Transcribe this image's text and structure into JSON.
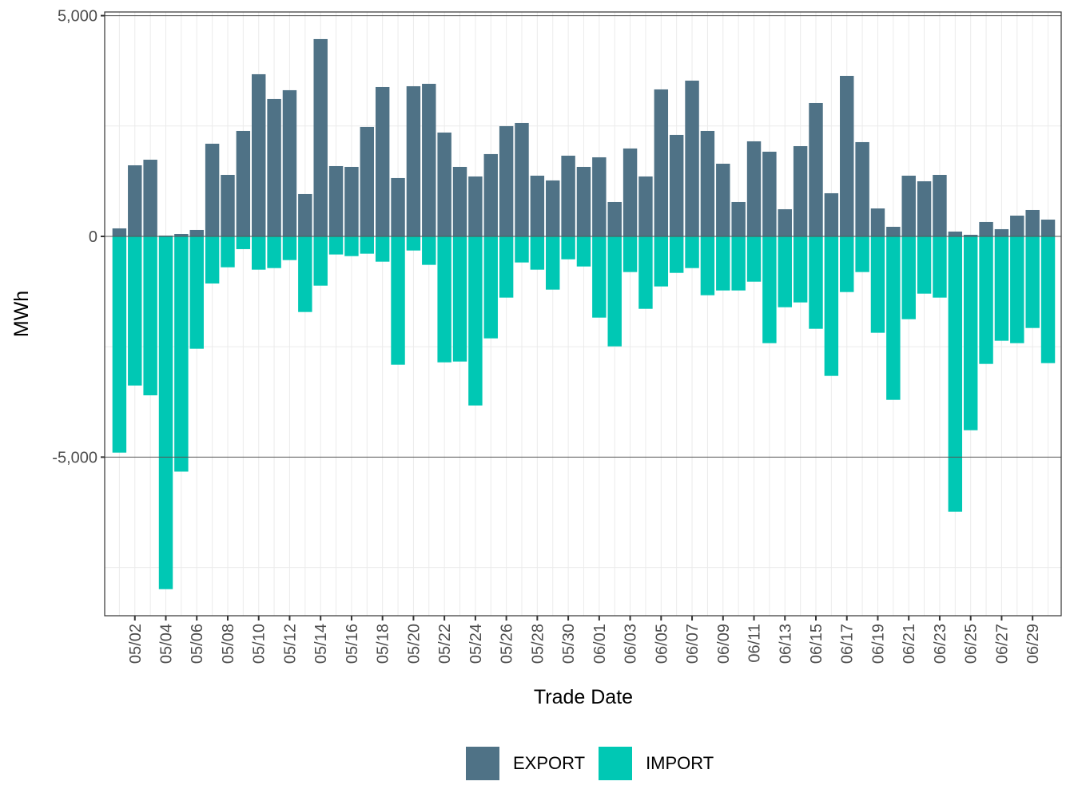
{
  "chart_data": {
    "type": "bar",
    "stacked": true,
    "title": "",
    "xlabel": "Trade Date",
    "ylabel": "MWh",
    "ylim": [
      -8593,
      5083
    ],
    "yticks": [
      5000,
      0,
      -5000
    ],
    "ytick_labels": [
      "5,000",
      "0",
      "-5,000"
    ],
    "grid": true,
    "legend_position": "bottom",
    "categories": [
      "05/01",
      "05/02",
      "05/03",
      "05/04",
      "05/05",
      "05/06",
      "05/07",
      "05/08",
      "05/09",
      "05/10",
      "05/11",
      "05/12",
      "05/13",
      "05/14",
      "05/15",
      "05/16",
      "05/17",
      "05/18",
      "05/19",
      "05/20",
      "05/21",
      "05/22",
      "05/23",
      "05/24",
      "05/25",
      "05/26",
      "05/27",
      "05/28",
      "05/29",
      "05/30",
      "05/31",
      "06/01",
      "06/02",
      "06/03",
      "06/04",
      "06/05",
      "06/06",
      "06/07",
      "06/08",
      "06/09",
      "06/10",
      "06/11",
      "06/12",
      "06/13",
      "06/14",
      "06/15",
      "06/16",
      "06/17",
      "06/18",
      "06/19",
      "06/20",
      "06/21",
      "06/22",
      "06/23",
      "06/24",
      "06/25",
      "06/26",
      "06/27",
      "06/28",
      "06/29",
      "06/30"
    ],
    "xtick_labels": [
      "05/02",
      "05/04",
      "05/06",
      "05/08",
      "05/10",
      "05/12",
      "05/14",
      "05/16",
      "05/18",
      "05/20",
      "05/22",
      "05/24",
      "05/26",
      "05/28",
      "05/30",
      "06/01",
      "06/03",
      "06/05",
      "06/07",
      "06/09",
      "06/11",
      "06/13",
      "06/15",
      "06/17",
      "06/19",
      "06/21",
      "06/23",
      "06/25",
      "06/27",
      "06/29"
    ],
    "series": [
      {
        "name": "EXPORT",
        "color": "#4f7286",
        "values": [
          181,
          1610,
          1737,
          18,
          54,
          145,
          2099,
          1393,
          2388,
          3673,
          3112,
          3311,
          959,
          4469,
          1592,
          1574,
          2479,
          3383,
          1321,
          3401,
          3456,
          2352,
          1574,
          1357,
          1864,
          2497,
          2569,
          1375,
          1267,
          1828,
          1574,
          1791,
          778,
          1991,
          1357,
          3329,
          2298,
          3528,
          2388,
          1646,
          778,
          2153,
          1918,
          615,
          2044,
          3021,
          977,
          3636,
          2135,
          633,
          217,
          1375,
          1248,
          1393,
          109,
          36,
          326,
          163,
          470,
          597,
          380
        ]
      },
      {
        "name": "IMPORT",
        "color": "#00c8b4",
        "values": [
          -4898,
          -3378,
          -3600,
          -7991,
          -5328,
          -2545,
          -1067,
          -700,
          -289,
          -754,
          -718,
          -537,
          -1713,
          -1116,
          -410,
          -447,
          -392,
          -573,
          -2907,
          -320,
          -645,
          -2853,
          -2835,
          -3830,
          -2310,
          -1387,
          -591,
          -754,
          -1206,
          -519,
          -682,
          -1840,
          -2491,
          -808,
          -1641,
          -1134,
          -827,
          -718,
          -1333,
          -1225,
          -1225,
          -1026,
          -2419,
          -1605,
          -1496,
          -2093,
          -3160,
          -1261,
          -808,
          -2183,
          -3703,
          -1876,
          -1297,
          -1387,
          -6236,
          -4391,
          -2889,
          -2364,
          -2419,
          -2075,
          -2871
        ]
      }
    ]
  },
  "legend": {
    "items": [
      {
        "label": "EXPORT",
        "color": "#4f7286"
      },
      {
        "label": "IMPORT",
        "color": "#00c8b4"
      }
    ]
  }
}
